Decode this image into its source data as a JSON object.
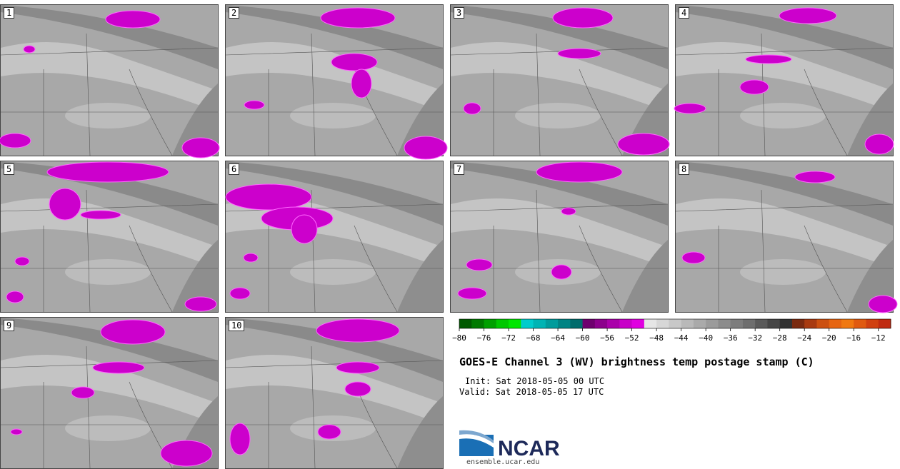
{
  "panels": [
    {
      "label": "1"
    },
    {
      "label": "2"
    },
    {
      "label": "3"
    },
    {
      "label": "4"
    },
    {
      "label": "5"
    },
    {
      "label": "6"
    },
    {
      "label": "7"
    },
    {
      "label": "8"
    },
    {
      "label": "9"
    },
    {
      "label": "10"
    }
  ],
  "colorbar": {
    "ticks": [
      "−80",
      "−76",
      "−72",
      "−68",
      "−64",
      "−60",
      "−56",
      "−52",
      "−48",
      "−44",
      "−40",
      "−36",
      "−32",
      "−28",
      "−24",
      "−20",
      "−16",
      "−12"
    ],
    "colors": [
      "#005a00",
      "#007a00",
      "#00a000",
      "#00c800",
      "#00e600",
      "#00cccc",
      "#00b4b4",
      "#009c9c",
      "#008484",
      "#006c6c",
      "#6e006e",
      "#8c008c",
      "#aa00aa",
      "#c800c8",
      "#e000e0",
      "#e6e6e6",
      "#d7d7d7",
      "#c8c8c8",
      "#b9b9b9",
      "#aaaaaa",
      "#9b9b9b",
      "#8c8c8c",
      "#7d7d7d",
      "#6e6e6e",
      "#5a5a5a",
      "#464646",
      "#323232",
      "#7a2a10",
      "#a83a10",
      "#cc5010",
      "#e66410",
      "#f07810",
      "#e05a10",
      "#d04010",
      "#c02a10"
    ]
  },
  "title": "GOES-E Channel 3 (WV) brightness temp postage stamp (C)",
  "init": "Init: Sat 2018-05-05 00 UTC",
  "valid": "Valid: Sat 2018-05-05 17 UTC",
  "logo": {
    "name": "NCAR",
    "url": "ensemble.ucar.edu"
  }
}
